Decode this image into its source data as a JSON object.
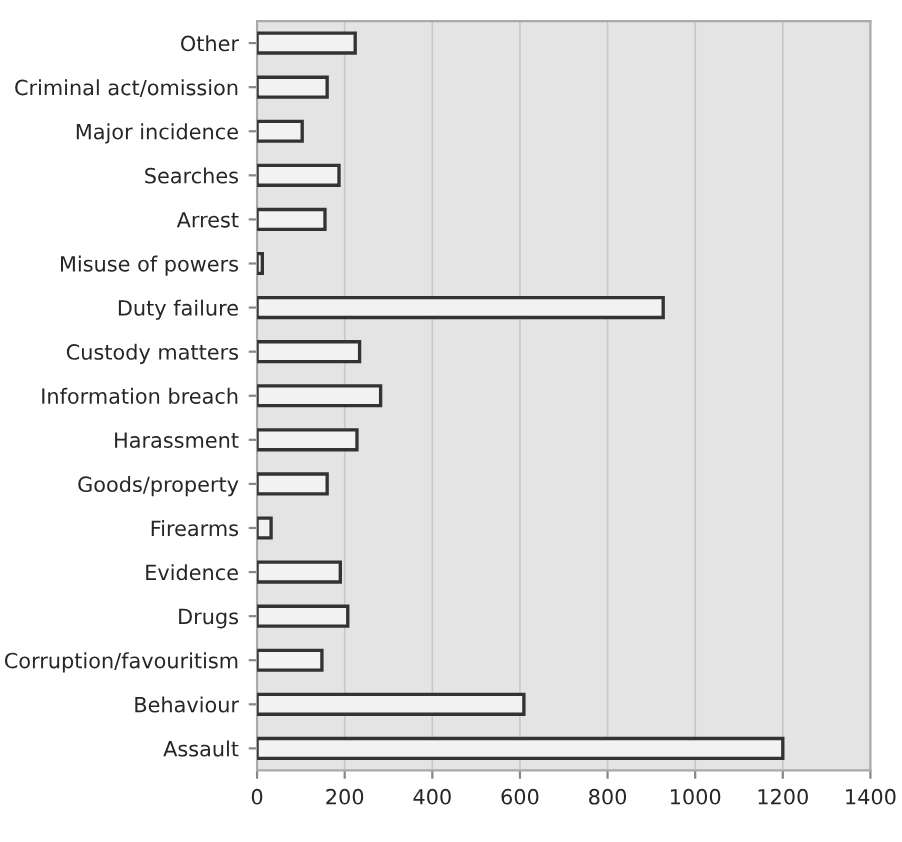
{
  "chart_data": {
    "type": "bar",
    "orientation": "horizontal",
    "categories": [
      "Other",
      "Criminal act/omission",
      "Major incidence",
      "Searches",
      "Arrest",
      "Misuse of powers",
      "Duty failure",
      "Custody matters",
      "Information breach",
      "Harassment",
      "Goods/property",
      "Firearms",
      "Evidence",
      "Drugs",
      "Corruption/favouritism",
      "Behaviour",
      "Assault"
    ],
    "values": [
      224,
      160,
      103,
      187,
      155,
      12,
      927,
      234,
      282,
      228,
      160,
      32,
      190,
      207,
      148,
      609,
      1200
    ],
    "color": "#f2f2f2",
    "xlim": [
      0,
      1400
    ],
    "xticks": [
      0,
      200,
      400,
      600,
      800,
      1000,
      1200,
      1400
    ],
    "grid": "x"
  }
}
